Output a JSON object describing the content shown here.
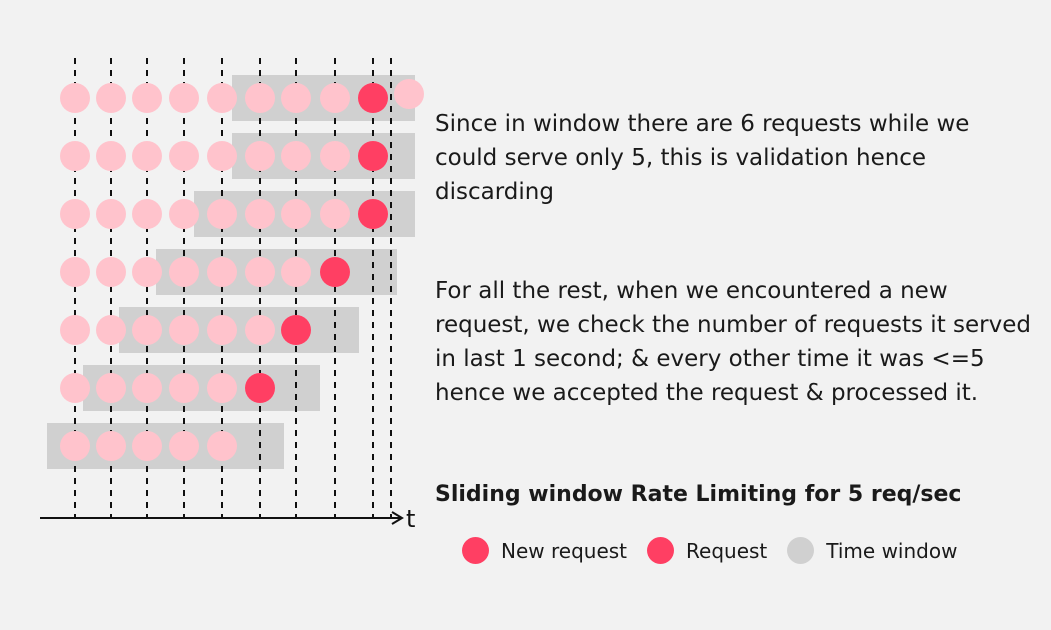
{
  "colors": {
    "background": "#f2f2f2",
    "request_light": "#ffc3cc",
    "request_new": "#ff3f63",
    "window": "#d0d0d0",
    "line": "#111111"
  },
  "axis_label": "t",
  "description_validation": "Since in window there are 6 requests while we could serve only 5, this is validation hence discarding",
  "description_rest": "For all the rest, when we encountered a new request, we check the number of requests it served in last 1 second; & every other time it was <=5 hence we accepted the request & processed it.",
  "title": "Sliding window Rate Limiting for 5 req/sec",
  "legend": [
    {
      "label": "New request",
      "color": "#ff3f63"
    },
    {
      "label": "Request",
      "color": "#ff3f63"
    },
    {
      "label": "Time window",
      "color": "#d0d0d0"
    }
  ],
  "timeline": {
    "request_ticks": 10,
    "rows": [
      {
        "row": 1,
        "window_from_tick": 5,
        "window_to_tick": 10,
        "new_request_tick": 9,
        "extra_request_tick": 10
      },
      {
        "row": 2,
        "window_from_tick": 5,
        "window_to_tick": 9,
        "new_request_tick": 9
      },
      {
        "row": 3,
        "window_from_tick": 4,
        "window_to_tick": 9,
        "new_request_tick": 9
      },
      {
        "row": 4,
        "window_from_tick": 3,
        "window_to_tick": 8,
        "new_request_tick": 8
      },
      {
        "row": 5,
        "window_from_tick": 2,
        "window_to_tick": 7,
        "new_request_tick": 7
      },
      {
        "row": 6,
        "window_from_tick": 1,
        "window_to_tick": 6,
        "new_request_tick": 6
      },
      {
        "row": 7,
        "window_from_tick": 0,
        "window_to_tick": 5,
        "new_request_tick": null
      }
    ]
  }
}
